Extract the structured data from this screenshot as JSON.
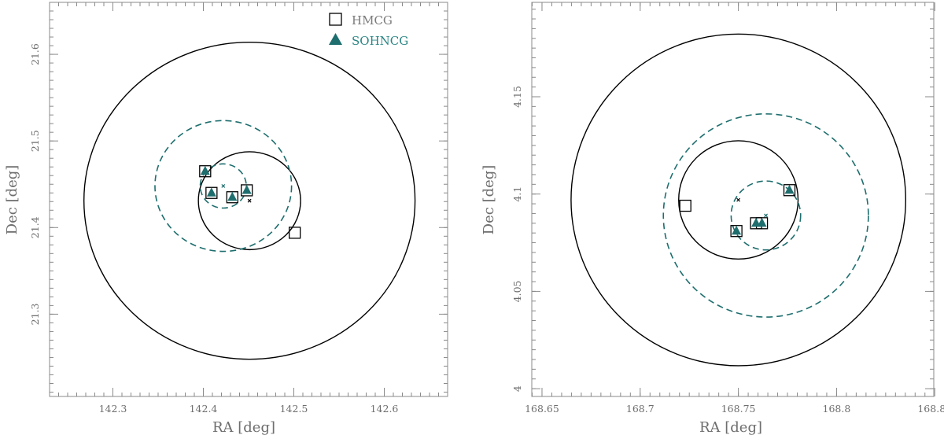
{
  "chart_data": [
    {
      "type": "scatter",
      "panel": "left",
      "xlabel": "RA [deg]",
      "ylabel": "Dec [deg]",
      "xlim": [
        142.23,
        142.67
      ],
      "ylim": [
        21.205,
        21.66
      ],
      "xticks": [
        142.3,
        142.4,
        142.5,
        142.6
      ],
      "xtick_labels": [
        "142.3",
        "142.4",
        "142.5",
        "142.6"
      ],
      "yticks": [
        21.3,
        21.4,
        21.5,
        21.6
      ],
      "ytick_labels": [
        "21.3",
        "21.4",
        "21.5",
        "21.6"
      ],
      "xminor_step": 0.01,
      "yminor_step": 0.01,
      "legend": {
        "position": "top-right",
        "entries": [
          {
            "label": "HMCG",
            "marker": "square",
            "color": "#000000"
          },
          {
            "label": "SOHNCG",
            "marker": "triangle",
            "color": "#1e6e6e"
          }
        ]
      },
      "circles": [
        {
          "name": "HMCG outer radius",
          "center": [
            142.451,
            21.431
          ],
          "radius": 0.183,
          "style": "solid",
          "color": "#000000"
        },
        {
          "name": "HMCG inner radius",
          "center": [
            142.451,
            21.431
          ],
          "radius": 0.0565,
          "style": "solid",
          "color": "#000000"
        },
        {
          "name": "SOHNCG outer radius",
          "center": [
            142.422,
            21.448
          ],
          "radius": 0.0755,
          "style": "dashed",
          "color": "#1e6e6e"
        },
        {
          "name": "SOHNCG inner radius",
          "center": [
            142.422,
            21.448
          ],
          "radius": 0.0255,
          "style": "dashed",
          "color": "#1e6e6e"
        }
      ],
      "centers": [
        {
          "name": "HMCG center",
          "x": 142.451,
          "y": 21.431,
          "color": "#000000"
        },
        {
          "name": "SOHNCG center",
          "x": 142.422,
          "y": 21.448,
          "color": "#1e6e6e"
        }
      ],
      "series": [
        {
          "name": "HMCG",
          "marker": "square",
          "color": "#000000",
          "points": [
            [
              142.402,
              21.465
            ],
            [
              142.409,
              21.44
            ],
            [
              142.432,
              21.435
            ],
            [
              142.448,
              21.443
            ],
            [
              142.501,
              21.394
            ]
          ]
        },
        {
          "name": "SOHNCG",
          "marker": "triangle",
          "color": "#1e6e6e",
          "points": [
            [
              142.402,
              21.465
            ],
            [
              142.409,
              21.44
            ],
            [
              142.432,
              21.435
            ],
            [
              142.448,
              21.443
            ]
          ]
        }
      ]
    },
    {
      "type": "scatter",
      "panel": "right",
      "xlabel": "RA [deg]",
      "ylabel": "Dec [deg]",
      "xlim": [
        168.6448,
        168.8495
      ],
      "ylim": [
        3.996,
        4.1985
      ],
      "xticks": [
        168.65,
        168.7,
        168.75,
        168.8,
        168.85
      ],
      "xtick_labels": [
        "168.65",
        "168.7",
        "168.75",
        "168.8",
        "168.85"
      ],
      "yticks": [
        4.0,
        4.05,
        4.1,
        4.15
      ],
      "ytick_labels": [
        "4",
        "4.05",
        "4.1",
        "4.15"
      ],
      "xminor_step": 0.005,
      "yminor_step": 0.005,
      "circles": [
        {
          "name": "HMCG outer radius",
          "center": [
            168.75,
            4.097
          ],
          "radius": 0.0852,
          "style": "solid",
          "color": "#000000"
        },
        {
          "name": "HMCG inner radius",
          "center": [
            168.75,
            4.097
          ],
          "radius": 0.0304,
          "style": "solid",
          "color": "#000000"
        },
        {
          "name": "SOHNCG outer radius",
          "center": [
            168.764,
            4.089
          ],
          "radius": 0.0522,
          "style": "dashed",
          "color": "#1e6e6e"
        },
        {
          "name": "SOHNCG inner radius",
          "center": [
            168.764,
            4.089
          ],
          "radius": 0.0177,
          "style": "dashed",
          "color": "#1e6e6e"
        }
      ],
      "centers": [
        {
          "name": "HMCG center",
          "x": 168.75,
          "y": 4.097,
          "color": "#000000"
        },
        {
          "name": "SOHNCG center",
          "x": 168.764,
          "y": 4.089,
          "color": "#1e6e6e"
        }
      ],
      "series": [
        {
          "name": "HMCG",
          "marker": "square",
          "color": "#000000",
          "points": [
            [
              168.723,
              4.094
            ],
            [
              168.749,
              4.081
            ],
            [
              168.759,
              4.085
            ],
            [
              168.762,
              4.085
            ],
            [
              168.776,
              4.102
            ]
          ]
        },
        {
          "name": "SOHNCG",
          "marker": "triangle",
          "color": "#1e6e6e",
          "points": [
            [
              168.749,
              4.081
            ],
            [
              168.759,
              4.085
            ],
            [
              168.762,
              4.085
            ],
            [
              168.776,
              4.102
            ]
          ]
        }
      ]
    }
  ]
}
